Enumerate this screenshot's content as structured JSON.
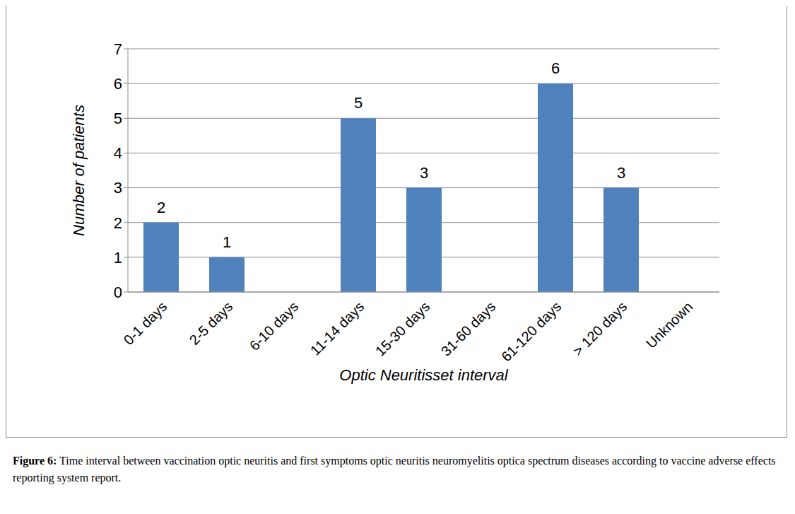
{
  "chart_data": {
    "type": "bar",
    "categories": [
      "0-1 days",
      "2-5 days",
      "6-10 days",
      "11-14 days",
      "15-30 days",
      "31-60 days",
      "61-120 days",
      "> 120 days",
      "Unknown"
    ],
    "values": [
      2,
      1,
      0,
      5,
      3,
      0,
      6,
      3,
      0
    ],
    "color": "#4f81bd",
    "x_label": "Optic Neuritisset interval",
    "y_label": "Number of patients",
    "ylim": [
      0,
      7
    ],
    "yticks": [
      0,
      1,
      2,
      3,
      4,
      5,
      6,
      7
    ],
    "grid": true,
    "data_labels": true
  },
  "caption": {
    "label": "Figure 6:",
    "text": "Time interval between vaccination optic neuritis and first symptoms optic neuritis neuromyelitis optica spectrum diseases according to vaccine adverse effects reporting system report."
  }
}
